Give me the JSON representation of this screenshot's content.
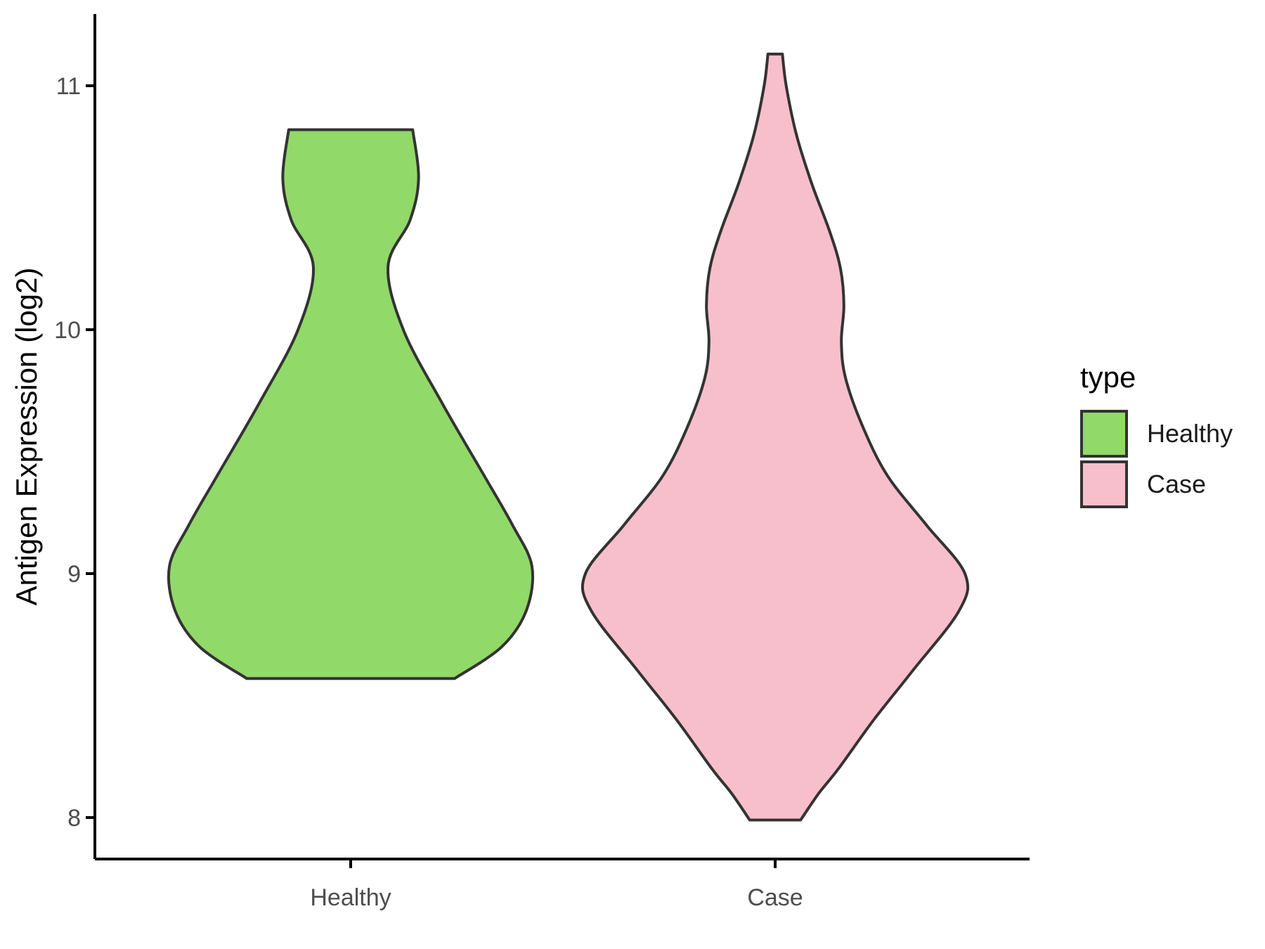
{
  "chart_data": {
    "type": "violin",
    "title": "",
    "xlabel": "",
    "ylabel": "Antigen Expression (log2)",
    "categories": [
      "Healthy",
      "Case"
    ],
    "y_ticks": [
      8,
      9,
      10,
      11
    ],
    "ylim": [
      7.83,
      11.3
    ],
    "grid": false,
    "background": "#FFFFFF",
    "axis_color": "#000000",
    "tick_label_color": "#4D4D4D",
    "outline_color": "#333333",
    "legend": {
      "title": "type",
      "position": "right",
      "entries": [
        {
          "label": "Healthy",
          "color": "#91D968"
        },
        {
          "label": "Case",
          "color": "#F7BFCB"
        }
      ]
    },
    "series": [
      {
        "name": "Healthy",
        "fill": "#91D968",
        "min": 8.57,
        "max": 10.82,
        "flat_top": true,
        "flat_bottom": true,
        "profile": [
          [
            10.82,
            0.146
          ],
          [
            10.62,
            0.16
          ],
          [
            10.45,
            0.14
          ],
          [
            10.26,
            0.088
          ],
          [
            10.0,
            0.124
          ],
          [
            9.7,
            0.215
          ],
          [
            9.4,
            0.315
          ],
          [
            9.2,
            0.381
          ],
          [
            9.03,
            0.427
          ],
          [
            8.85,
            0.414
          ],
          [
            8.7,
            0.356
          ],
          [
            8.57,
            0.245
          ]
        ]
      },
      {
        "name": "Case",
        "fill": "#F7BFCB",
        "min": 7.99,
        "max": 11.13,
        "flat_top": true,
        "flat_bottom": true,
        "profile": [
          [
            11.13,
            0.017
          ],
          [
            11.0,
            0.026
          ],
          [
            10.8,
            0.05
          ],
          [
            10.6,
            0.086
          ],
          [
            10.4,
            0.129
          ],
          [
            10.25,
            0.154
          ],
          [
            10.1,
            0.162
          ],
          [
            9.95,
            0.156
          ],
          [
            9.8,
            0.166
          ],
          [
            9.6,
            0.207
          ],
          [
            9.4,
            0.265
          ],
          [
            9.2,
            0.356
          ],
          [
            9.0,
            0.447
          ],
          [
            8.85,
            0.434
          ],
          [
            8.6,
            0.323
          ],
          [
            8.4,
            0.232
          ],
          [
            8.2,
            0.149
          ],
          [
            8.1,
            0.103
          ],
          [
            7.99,
            0.06
          ]
        ]
      }
    ]
  }
}
